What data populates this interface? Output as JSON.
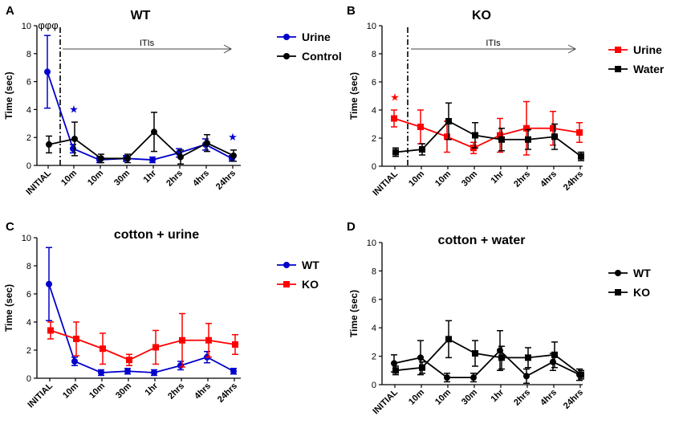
{
  "figure": {
    "caption": ""
  },
  "colors": {
    "blue": "#0000cc",
    "black": "#000000",
    "red": "#ff0000",
    "axis": "#000000"
  },
  "chart_data": [
    {
      "panel": "A",
      "type": "line",
      "title": "WT",
      "ylabel": "Time (sec)",
      "xlabel": "",
      "ylim": [
        0,
        10
      ],
      "yticks": [
        "0",
        "2",
        "4",
        "6",
        "8",
        "10"
      ],
      "categories": [
        "INITIAL",
        "10m",
        "10m",
        "30m",
        "1hr",
        "2hrs",
        "4hrs",
        "24hrs"
      ],
      "series": [
        {
          "name": "Urine",
          "color": "#0000cc",
          "marker": "circle",
          "values": [
            6.7,
            1.2,
            0.4,
            0.5,
            0.4,
            0.9,
            1.5,
            0.5
          ],
          "errors": [
            2.6,
            0.3,
            0.2,
            0.2,
            0.2,
            0.3,
            0.4,
            0.2
          ]
        },
        {
          "name": "Control",
          "color": "#000000",
          "marker": "circle",
          "values": [
            1.5,
            1.9,
            0.5,
            0.5,
            2.4,
            0.6,
            1.6,
            0.7
          ],
          "errors": [
            0.6,
            1.2,
            0.3,
            0.3,
            1.4,
            0.5,
            0.6,
            0.4
          ]
        }
      ],
      "annotations": [
        {
          "text": "φφφ",
          "category": 0,
          "y": 10.0
        },
        {
          "text": "★",
          "category": 1,
          "y": 4.0,
          "color": "#0000cc"
        },
        {
          "text": "★",
          "category": 7,
          "y": 2.0,
          "color": "#0000cc"
        }
      ],
      "divider_label": "ITIs",
      "legend": [
        "Urine",
        "Control"
      ]
    },
    {
      "panel": "B",
      "type": "line",
      "title": "KO",
      "ylabel": "Time (sec)",
      "xlabel": "",
      "ylim": [
        0,
        10
      ],
      "yticks": [
        "0",
        "2",
        "4",
        "6",
        "8",
        "10"
      ],
      "categories": [
        "INITIAL",
        "10m",
        "10m",
        "30m",
        "1hr",
        "2hrs",
        "4hrs",
        "24hrs"
      ],
      "series": [
        {
          "name": "Urine",
          "color": "#ff0000",
          "marker": "square",
          "values": [
            3.4,
            2.8,
            2.1,
            1.3,
            2.2,
            2.7,
            2.7,
            2.4
          ],
          "errors": [
            0.6,
            1.2,
            1.1,
            0.4,
            1.2,
            1.9,
            1.2,
            0.7
          ]
        },
        {
          "name": "Water",
          "color": "#000000",
          "marker": "square",
          "values": [
            1.0,
            1.2,
            3.2,
            2.2,
            1.9,
            1.9,
            2.1,
            0.7
          ],
          "errors": [
            0.3,
            0.4,
            1.3,
            0.9,
            0.8,
            0.7,
            0.9,
            0.3
          ]
        }
      ],
      "annotations": [
        {
          "text": "★",
          "category": 0,
          "y": 4.9,
          "color": "#ff0000"
        }
      ],
      "divider_label": "ITIs",
      "legend": [
        "Urine",
        "Water"
      ]
    },
    {
      "panel": "C",
      "type": "line",
      "title": "cotton + urine",
      "ylabel": "Time (sec)",
      "xlabel": "",
      "ylim": [
        0,
        10
      ],
      "yticks": [
        "0",
        "2",
        "4",
        "6",
        "8",
        "10"
      ],
      "categories": [
        "INITIAL",
        "10m",
        "10m",
        "30m",
        "1hr",
        "2hrs",
        "4hrs",
        "24hrs"
      ],
      "series": [
        {
          "name": "WT",
          "color": "#0000cc",
          "marker": "circle",
          "values": [
            6.7,
            1.2,
            0.4,
            0.5,
            0.4,
            0.9,
            1.5,
            0.5
          ],
          "errors": [
            2.6,
            0.3,
            0.2,
            0.2,
            0.2,
            0.3,
            0.4,
            0.2
          ]
        },
        {
          "name": "KO",
          "color": "#ff0000",
          "marker": "square",
          "values": [
            3.4,
            2.8,
            2.1,
            1.3,
            2.2,
            2.7,
            2.7,
            2.4
          ],
          "errors": [
            0.6,
            1.2,
            1.1,
            0.4,
            1.2,
            1.9,
            1.2,
            0.7
          ]
        }
      ],
      "annotations": [],
      "divider_label": "",
      "legend": [
        "WT",
        "KO"
      ]
    },
    {
      "panel": "D",
      "type": "line",
      "title": "cotton + water",
      "ylabel": "Time (sec)",
      "xlabel": "",
      "ylim": [
        0,
        10
      ],
      "yticks": [
        "0",
        "2",
        "4",
        "6",
        "8",
        "10"
      ],
      "categories": [
        "INITIAL",
        "10m",
        "10m",
        "30m",
        "1hr",
        "2hrs",
        "4hrs",
        "24hrs"
      ],
      "series": [
        {
          "name": "WT",
          "color": "#000000",
          "marker": "circle",
          "values": [
            1.5,
            1.9,
            0.5,
            0.5,
            2.4,
            0.6,
            1.6,
            0.7
          ],
          "errors": [
            0.6,
            1.2,
            0.3,
            0.3,
            1.4,
            0.5,
            0.6,
            0.4
          ]
        },
        {
          "name": "KO",
          "color": "#000000",
          "marker": "square",
          "values": [
            1.0,
            1.2,
            3.2,
            2.2,
            1.9,
            1.9,
            2.1,
            0.7
          ],
          "errors": [
            0.3,
            0.4,
            1.3,
            0.9,
            0.8,
            0.7,
            0.9,
            0.3
          ]
        }
      ],
      "annotations": [],
      "divider_label": "",
      "legend": [
        "WT",
        "KO"
      ]
    }
  ]
}
